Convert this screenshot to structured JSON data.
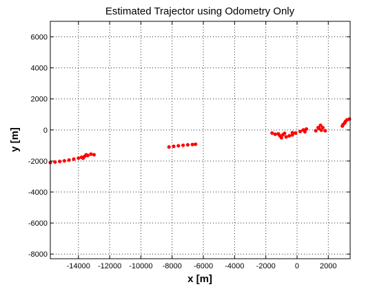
{
  "chart_data": {
    "type": "scatter",
    "title": "Estimated Trajector using Odometry Only",
    "xlabel": "x [m]",
    "ylabel": "y [m]",
    "xlim": [
      -15800,
      3400
    ],
    "ylim": [
      -8300,
      7000
    ],
    "xticks": [
      -14000,
      -12000,
      -10000,
      -8000,
      -6000,
      -4000,
      -2000,
      0,
      2000
    ],
    "yticks": [
      -8000,
      -6000,
      -4000,
      -2000,
      0,
      2000,
      4000,
      6000
    ],
    "xtick_labels": [
      "-14000",
      "-12000",
      "-10000",
      "-8000",
      "-6000",
      "-4000",
      "-2000",
      "0",
      "2000"
    ],
    "ytick_labels": [
      "-8000",
      "-6000",
      "-4000",
      "-2000",
      "0",
      "2000",
      "4000",
      "6000"
    ],
    "grid": true,
    "marker": "*",
    "color": "#ff0000",
    "series": [
      {
        "points": [
          [
            -15800,
            -2100
          ],
          [
            -15500,
            -2070
          ],
          [
            -15200,
            -2030
          ],
          [
            -14900,
            -1990
          ],
          [
            -14600,
            -1940
          ],
          [
            -14300,
            -1880
          ],
          [
            -14000,
            -1820
          ],
          [
            -13800,
            -1760
          ],
          [
            -13700,
            -1820
          ],
          [
            -13600,
            -1700
          ],
          [
            -13500,
            -1600
          ],
          [
            -13400,
            -1650
          ],
          [
            -13200,
            -1560
          ],
          [
            -13000,
            -1600
          ]
        ]
      },
      {
        "points": [
          [
            -8200,
            -1100
          ],
          [
            -7900,
            -1060
          ],
          [
            -7600,
            -1020
          ],
          [
            -7300,
            -990
          ],
          [
            -7000,
            -960
          ],
          [
            -6700,
            -940
          ],
          [
            -6500,
            -920
          ]
        ]
      },
      {
        "points": [
          [
            -1600,
            -200
          ],
          [
            -1400,
            -280
          ],
          [
            -1200,
            -250
          ],
          [
            -1000,
            -500
          ],
          [
            -900,
            -300
          ],
          [
            -700,
            -450
          ],
          [
            -500,
            -380
          ],
          [
            -300,
            -320
          ],
          [
            -100,
            -200
          ],
          [
            200,
            -100
          ],
          [
            400,
            0
          ],
          [
            600,
            60
          ],
          [
            500,
            -120
          ],
          [
            -800,
            -220
          ],
          [
            -1100,
            -380
          ],
          [
            -300,
            -180
          ]
        ]
      },
      {
        "points": [
          [
            1200,
            -50
          ],
          [
            1350,
            150
          ],
          [
            1500,
            300
          ],
          [
            1650,
            150
          ],
          [
            1800,
            -50
          ],
          [
            1550,
            -20
          ],
          [
            1400,
            100
          ]
        ]
      },
      {
        "points": [
          [
            2900,
            250
          ],
          [
            3050,
            450
          ],
          [
            3200,
            650
          ],
          [
            3350,
            700
          ],
          [
            3100,
            550
          ],
          [
            2950,
            350
          ]
        ]
      }
    ]
  }
}
